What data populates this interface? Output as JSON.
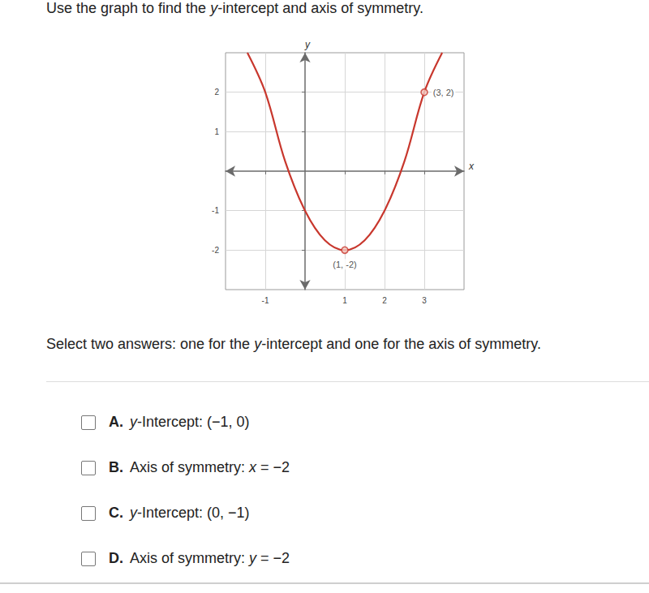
{
  "question": [
    "Use the graph to find the ",
    "y",
    "-intercept and axis of symmetry."
  ],
  "chart_data": {
    "type": "line",
    "x_label": "x",
    "y_label": "y",
    "xlim": [
      -2,
      4
    ],
    "ylim": [
      -3,
      3
    ],
    "xticks": [
      -1,
      1,
      2,
      3
    ],
    "yticks": [
      -2,
      -1,
      1,
      2
    ],
    "grid": true,
    "color": "#c8372d",
    "x": [
      -1.45,
      -1,
      -0.5,
      0,
      0.5,
      1,
      1.5,
      2,
      2.5,
      3,
      3.45
    ],
    "values": [
      3,
      2,
      0.25,
      -1,
      -1.75,
      -2,
      -1.75,
      -1,
      0.25,
      2,
      3
    ],
    "points": [
      {
        "x": 1,
        "y": -2,
        "label": "(1, -2)"
      },
      {
        "x": 3,
        "y": 2,
        "label": "(3, 2)"
      }
    ]
  },
  "instruction": [
    "Select two answers: one for the ",
    "y",
    "-intercept and one for the axis of symmetry."
  ],
  "choices": [
    {
      "letter": "A.",
      "parts": [
        "",
        "y",
        "-Intercept: (−1, 0)"
      ]
    },
    {
      "letter": "B.",
      "parts": [
        "Axis of symmetry: ",
        "x",
        " = −2"
      ]
    },
    {
      "letter": "C.",
      "parts": [
        "",
        "y",
        "-Intercept: (0, −1)"
      ]
    },
    {
      "letter": "D.",
      "parts": [
        "Axis of symmetry: ",
        "y",
        " = −2"
      ]
    }
  ]
}
